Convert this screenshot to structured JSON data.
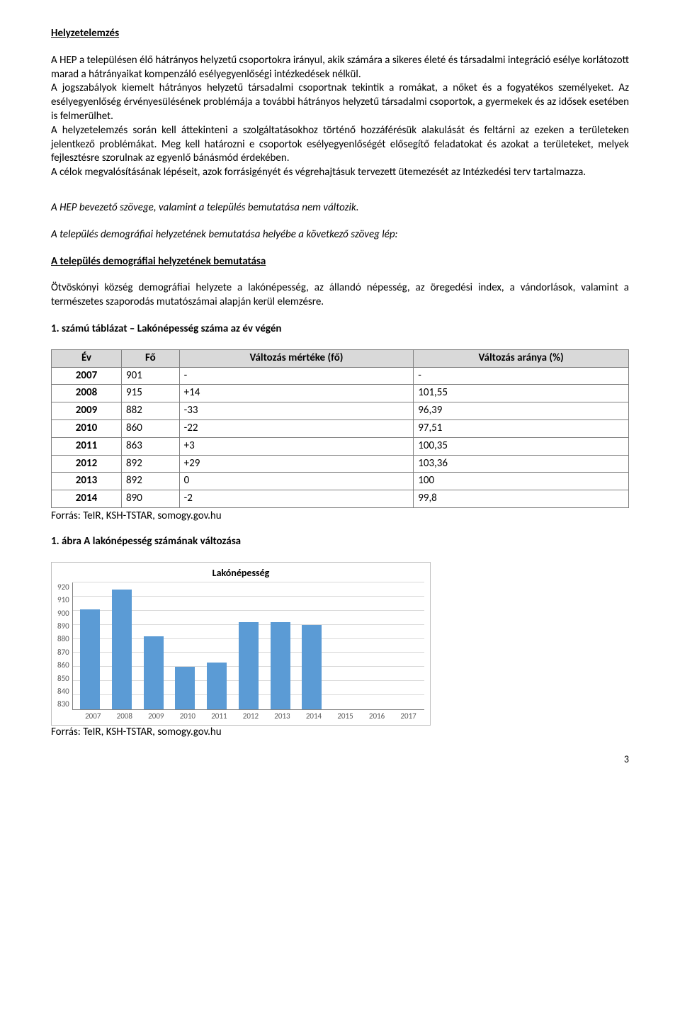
{
  "headings": {
    "h1": "Helyzetelemzés",
    "h2": "A település demográfiai helyzetének bemutatása"
  },
  "paragraphs": {
    "p1": "A HEP a településen élő hátrányos helyzetű csoportokra irányul, akik számára a sikeres életé és társadalmi integráció esélye korlátozott marad a hátrányaikat kompenzáló esélyegyenlőségi intézkedések nélkül.",
    "p2": "A jogszabályok kiemelt hátrányos helyzetű társadalmi csoportnak tekintik a romákat, a nőket és a fogyatékos személyeket. Az esélyegyenlőség érvényesülésének problémája a további hátrányos helyzetű társadalmi csoportok, a gyermekek és az idősek esetében is felmerülhet.",
    "p3": "A helyzetelemzés során kell áttekinteni a szolgáltatásokhoz történő hozzáférésük alakulását és feltárni az ezeken a területeken jelentkező problémákat. Meg kell határozni e csoportok esélyegyenlőségét elősegítő feladatokat és azokat a területeket, melyek fejlesztésre szorulnak az egyenlő bánásmód érdekében.",
    "p4": "A célok megvalósításának lépéseit, azok forrásigényét és végrehajtásuk tervezett ütemezését az Intézkedési terv tartalmazza.",
    "i1": "A HEP bevezető szövege, valamint a település bemutatása nem változik.",
    "i2": "A település demográfiai helyzetének bemutatása helyébe a következő szöveg lép:",
    "p5": "Ötvöskónyi község demográfiai helyzete a lakónépesség, az állandó népesség, az öregedési index, a vándorlások, valamint a természetes szaporodás mutatószámai alapján kerül elemzésre."
  },
  "table": {
    "caption": "1. számú táblázat – Lakónépesség száma az év végén",
    "columns": [
      "Év",
      "Fő",
      "Változás mértéke (fő)",
      "Változás aránya (%)"
    ],
    "rows": [
      [
        "2007",
        "901",
        "-",
        "-"
      ],
      [
        "2008",
        "915",
        "+14",
        "101,55"
      ],
      [
        "2009",
        "882",
        "-33",
        "96,39"
      ],
      [
        "2010",
        "860",
        "-22",
        "97,51"
      ],
      [
        "2011",
        "863",
        "+3",
        "100,35"
      ],
      [
        "2012",
        "892",
        "+29",
        "103,36"
      ],
      [
        "2013",
        "892",
        "0",
        "100"
      ],
      [
        "2014",
        "890",
        "-2",
        "99,8"
      ]
    ],
    "source": "Forrás: TeIR, KSH-TSTAR, somogy.gov.hu"
  },
  "chart": {
    "caption": "1. ábra A lakónépesség számának változása",
    "title": "Lakónépesség",
    "type": "bar",
    "categories": [
      "2007",
      "2008",
      "2009",
      "2010",
      "2011",
      "2012",
      "2013",
      "2014",
      "2015",
      "2016",
      "2017"
    ],
    "values": [
      901,
      915,
      882,
      860,
      863,
      892,
      892,
      890,
      0,
      0,
      0
    ],
    "ylim": [
      830,
      920
    ],
    "ytick_step": 10,
    "yticks": [
      "920",
      "910",
      "900",
      "890",
      "880",
      "870",
      "860",
      "850",
      "840",
      "830"
    ],
    "bar_color": "#5b9bd5",
    "grid_color": "#d9d9d9",
    "border_color": "#bfbfbf",
    "axis_color": "#808080",
    "label_color": "#595959",
    "background_color": "#ffffff",
    "title_fontsize": 14,
    "label_fontsize": 11,
    "source": "Forrás: TeIR, KSH-TSTAR, somogy.gov.hu"
  },
  "page_number": "3"
}
